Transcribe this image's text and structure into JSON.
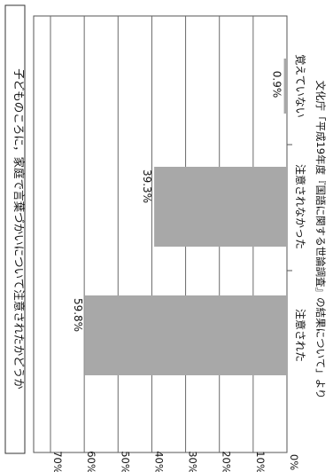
{
  "chart_data": {
    "type": "bar",
    "orientation": "horizontal-rotated",
    "title": "子どものころに，家庭で言葉づかいについて注意されたかどうか",
    "categories": [
      "注意された",
      "注意されなかった",
      "覚えていない"
    ],
    "values": [
      59.8,
      39.3,
      0.9
    ],
    "value_labels": [
      "59.8%",
      "39.3%",
      "0.9%"
    ],
    "ylim": [
      0,
      70
    ],
    "ticks": [
      0,
      10,
      20,
      30,
      40,
      50,
      60,
      70
    ],
    "tick_labels": [
      "0%",
      "10%",
      "20%",
      "30%",
      "40%",
      "50%",
      "60%",
      "70%"
    ],
    "grid": true,
    "bar_color": "#a8a8a8",
    "source": "文化庁「平成19年度『国語に関する世論調査』の結果について」より"
  }
}
